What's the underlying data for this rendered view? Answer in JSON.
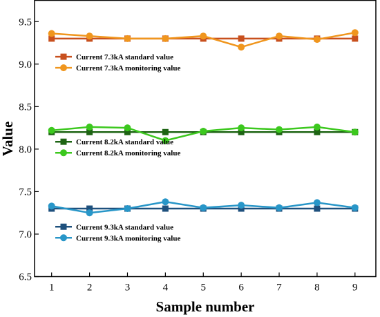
{
  "chart_data": {
    "type": "line",
    "title": "",
    "xlabel": "Sample number",
    "ylabel": "Value",
    "x": [
      1,
      2,
      3,
      4,
      5,
      6,
      7,
      8,
      9
    ],
    "xlim": [
      0.55,
      9.55
    ],
    "ylim": [
      6.5,
      9.75
    ],
    "x_ticks": [
      1,
      2,
      3,
      4,
      5,
      6,
      7,
      8,
      9
    ],
    "y_ticks": [
      6.5,
      7.0,
      7.5,
      8.0,
      8.5,
      9.0,
      9.5
    ],
    "y_tick_labels": [
      "6.5",
      "7.0",
      "7.5",
      "8.0",
      "8.5",
      "9.0",
      "9.5"
    ],
    "grid": false,
    "series": [
      {
        "name": "Current 7.3kA standard value",
        "color": "#c8501e",
        "marker": "square",
        "values": [
          9.3,
          9.3,
          9.3,
          9.3,
          9.3,
          9.3,
          9.3,
          9.3,
          9.3
        ]
      },
      {
        "name": "Current 7.3kA monitoring value",
        "color": "#f0961e",
        "marker": "circle",
        "values": [
          9.36,
          9.33,
          9.3,
          9.3,
          9.33,
          9.2,
          9.33,
          9.29,
          9.37
        ]
      },
      {
        "name": "Current 8.2kA standard value",
        "color": "#1e6414",
        "marker": "square",
        "values": [
          8.2,
          8.2,
          8.2,
          8.2,
          8.2,
          8.2,
          8.2,
          8.2,
          8.2
        ]
      },
      {
        "name": "Current 8.2kA monitoring value",
        "color": "#3cc81e",
        "marker": "circle",
        "values": [
          8.22,
          8.26,
          8.25,
          8.1,
          8.21,
          8.25,
          8.23,
          8.26,
          8.2
        ]
      },
      {
        "name": "Current 9.3kA standard value",
        "color": "#1e507d",
        "marker": "square",
        "values": [
          7.3,
          7.3,
          7.3,
          7.3,
          7.3,
          7.3,
          7.3,
          7.3,
          7.3
        ]
      },
      {
        "name": "Current 9.3kA monitoring value",
        "color": "#2896c8",
        "marker": "circle",
        "values": [
          7.33,
          7.25,
          7.3,
          7.38,
          7.31,
          7.34,
          7.31,
          7.37,
          7.31
        ]
      }
    ],
    "legends": [
      {
        "series": [
          0,
          1
        ],
        "anchor_value": 9.03
      },
      {
        "series": [
          2,
          3
        ],
        "anchor_value": 8.03
      },
      {
        "series": [
          4,
          5
        ],
        "anchor_value": 7.03
      }
    ]
  }
}
